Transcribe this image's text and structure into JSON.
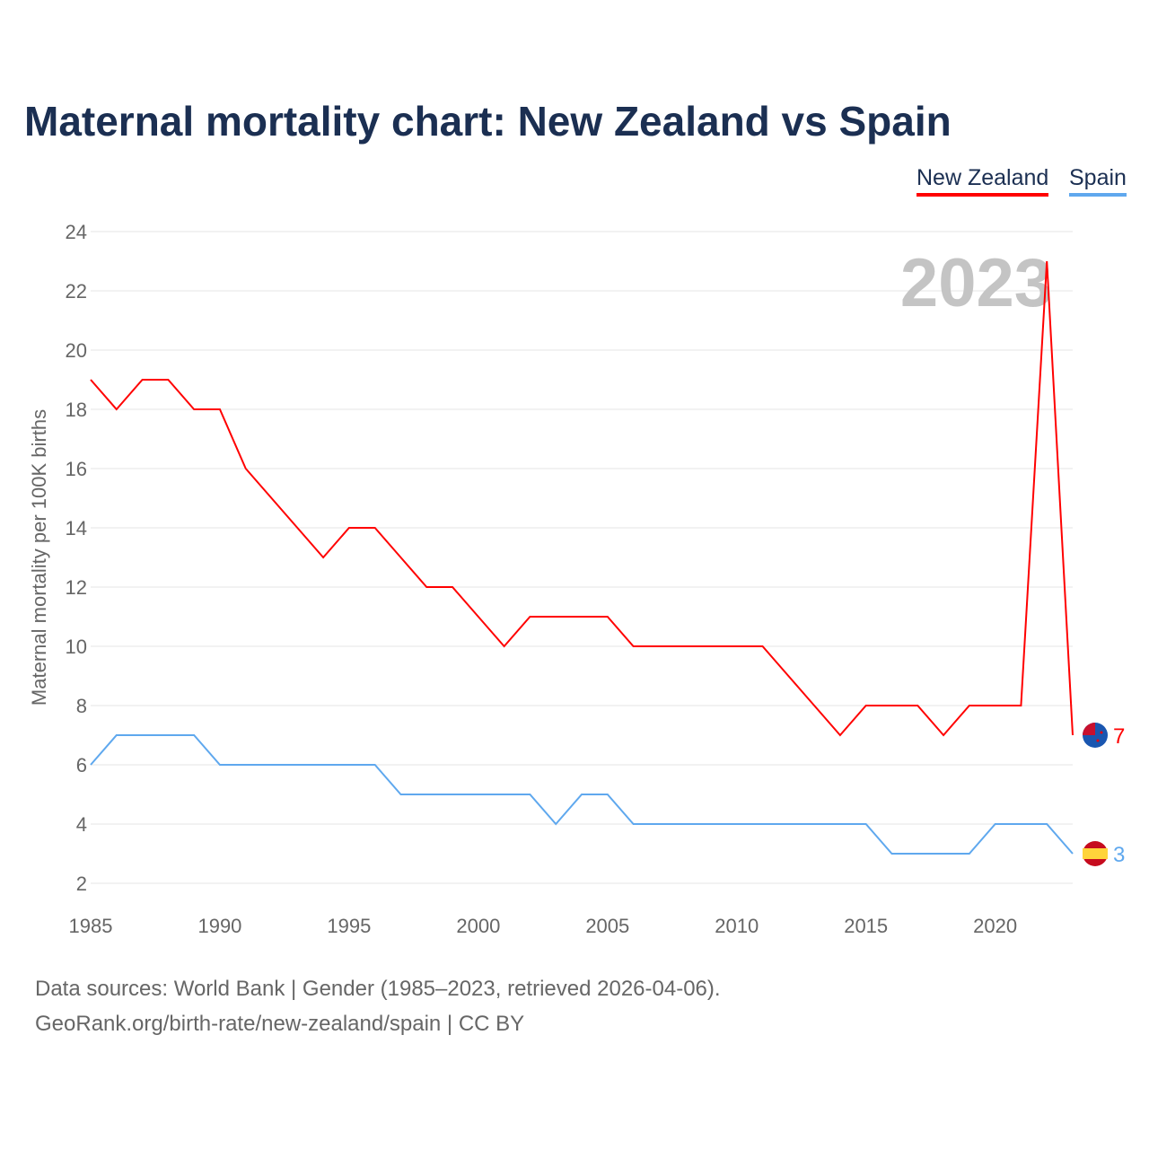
{
  "title": "Maternal mortality chart: New Zealand vs Spain",
  "chart_data": {
    "type": "line",
    "title": "Maternal mortality chart: New Zealand vs Spain",
    "xlabel": "",
    "ylabel": "Maternal mortality per 100K births",
    "xlim": [
      1985,
      2023
    ],
    "ylim": [
      2,
      24
    ],
    "x_ticks": [
      "1985",
      "1990",
      "1995",
      "2000",
      "2005",
      "2010",
      "2015",
      "2020"
    ],
    "y_ticks": [
      "2",
      "4",
      "6",
      "8",
      "10",
      "12",
      "14",
      "16",
      "18",
      "20",
      "22",
      "24"
    ],
    "year_label": "2023",
    "legend_position": "top-right",
    "x": [
      1985,
      1986,
      1987,
      1988,
      1989,
      1990,
      1991,
      1992,
      1993,
      1994,
      1995,
      1996,
      1997,
      1998,
      1999,
      2000,
      2001,
      2002,
      2003,
      2004,
      2005,
      2006,
      2007,
      2008,
      2009,
      2010,
      2011,
      2012,
      2013,
      2014,
      2015,
      2016,
      2017,
      2018,
      2019,
      2020,
      2021,
      2022,
      2023
    ],
    "series": [
      {
        "name": "New Zealand",
        "color": "#ff0000",
        "end_label": "7",
        "values": [
          19,
          18,
          19,
          19,
          18,
          18,
          16,
          15,
          14,
          13,
          14,
          14,
          13,
          12,
          12,
          11,
          10,
          11,
          11,
          11,
          11,
          10,
          10,
          10,
          10,
          10,
          10,
          9,
          8,
          7,
          8,
          8,
          8,
          7,
          8,
          8,
          8,
          23,
          7
        ]
      },
      {
        "name": "Spain",
        "color": "#5fa8ee",
        "end_label": "3",
        "values": [
          6,
          7,
          7,
          7,
          7,
          6,
          6,
          6,
          6,
          6,
          6,
          6,
          5,
          5,
          5,
          5,
          5,
          5,
          4,
          5,
          5,
          4,
          4,
          4,
          4,
          4,
          4,
          4,
          4,
          4,
          4,
          3,
          3,
          3,
          3,
          4,
          4,
          4,
          3
        ]
      }
    ]
  },
  "footer": {
    "line1": "Data sources: World Bank | Gender (1985–2023, retrieved 2026-04-06).",
    "line2": "GeoRank.org/birth-rate/new-zealand/spain | CC BY"
  }
}
